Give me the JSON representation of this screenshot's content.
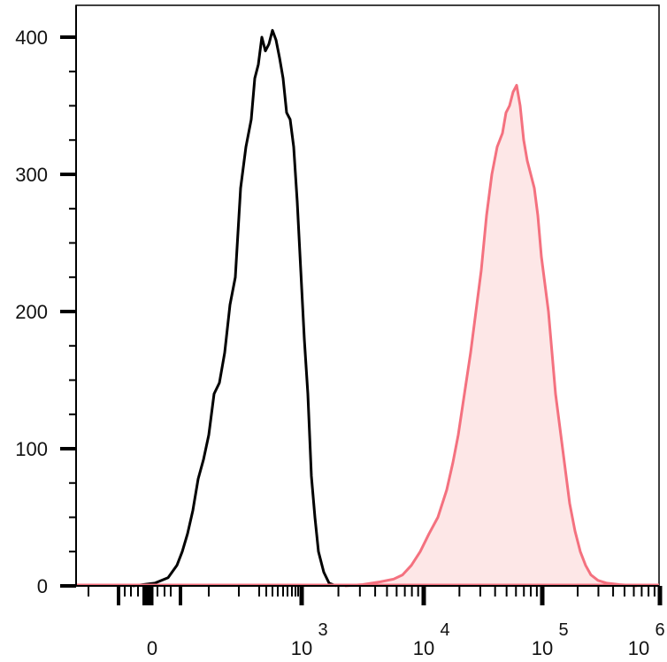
{
  "chart_data": {
    "type": "area",
    "title": "",
    "xlabel": "",
    "ylabel": "",
    "x_scale": "biexponential",
    "ylim": [
      0,
      420
    ],
    "y_ticks": [
      0,
      100,
      200,
      300,
      400
    ],
    "y_tick_labels": [
      "0",
      "100",
      "200",
      "300",
      "400"
    ],
    "x_ticks": [
      {
        "base": "0",
        "exp": ""
      },
      {
        "base": "10",
        "exp": "3"
      },
      {
        "base": "10",
        "exp": "4"
      },
      {
        "base": "10",
        "exp": "5"
      },
      {
        "base": "10",
        "exp": "6"
      }
    ],
    "grid": false,
    "legend": "none",
    "series": [
      {
        "color": "#000000",
        "fill": "none",
        "points": [
          [
            150,
            0
          ],
          [
            175,
            2
          ],
          [
            190,
            6
          ],
          [
            200,
            15
          ],
          [
            206,
            25
          ],
          [
            212,
            38
          ],
          [
            218,
            55
          ],
          [
            224,
            78
          ],
          [
            230,
            92
          ],
          [
            236,
            110
          ],
          [
            242,
            140
          ],
          [
            248,
            148
          ],
          [
            254,
            170
          ],
          [
            260,
            205
          ],
          [
            266,
            225
          ],
          [
            272,
            290
          ],
          [
            278,
            320
          ],
          [
            284,
            340
          ],
          [
            288,
            370
          ],
          [
            292,
            380
          ],
          [
            296,
            400
          ],
          [
            300,
            390
          ],
          [
            304,
            395
          ],
          [
            308,
            405
          ],
          [
            312,
            398
          ],
          [
            316,
            385
          ],
          [
            320,
            370
          ],
          [
            324,
            345
          ],
          [
            328,
            340
          ],
          [
            332,
            320
          ],
          [
            336,
            280
          ],
          [
            340,
            230
          ],
          [
            344,
            180
          ],
          [
            348,
            140
          ],
          [
            352,
            80
          ],
          [
            356,
            50
          ],
          [
            360,
            25
          ],
          [
            366,
            10
          ],
          [
            372,
            2
          ],
          [
            380,
            0
          ]
        ]
      },
      {
        "color": "#f4717f",
        "fill": "#fde7e7",
        "points": [
          [
            390,
            0
          ],
          [
            410,
            1
          ],
          [
            430,
            3
          ],
          [
            445,
            5
          ],
          [
            455,
            8
          ],
          [
            465,
            15
          ],
          [
            475,
            25
          ],
          [
            485,
            38
          ],
          [
            495,
            50
          ],
          [
            505,
            70
          ],
          [
            512,
            90
          ],
          [
            518,
            110
          ],
          [
            525,
            140
          ],
          [
            532,
            170
          ],
          [
            538,
            200
          ],
          [
            544,
            230
          ],
          [
            550,
            270
          ],
          [
            556,
            300
          ],
          [
            562,
            320
          ],
          [
            568,
            330
          ],
          [
            572,
            345
          ],
          [
            576,
            350
          ],
          [
            580,
            360
          ],
          [
            584,
            365
          ],
          [
            588,
            350
          ],
          [
            592,
            325
          ],
          [
            596,
            310
          ],
          [
            600,
            300
          ],
          [
            604,
            290
          ],
          [
            608,
            270
          ],
          [
            612,
            240
          ],
          [
            616,
            220
          ],
          [
            620,
            200
          ],
          [
            624,
            170
          ],
          [
            628,
            140
          ],
          [
            632,
            120
          ],
          [
            636,
            100
          ],
          [
            640,
            80
          ],
          [
            644,
            60
          ],
          [
            650,
            40
          ],
          [
            656,
            25
          ],
          [
            662,
            15
          ],
          [
            668,
            8
          ],
          [
            676,
            4
          ],
          [
            686,
            2
          ],
          [
            700,
            1
          ],
          [
            720,
            0
          ]
        ]
      }
    ]
  }
}
